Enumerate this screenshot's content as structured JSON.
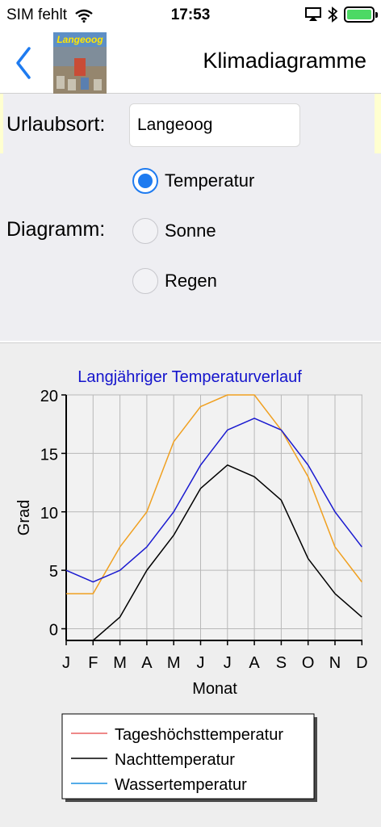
{
  "status_bar": {
    "carrier": "SIM fehlt",
    "time": "17:53"
  },
  "nav": {
    "title": "Klimadiagramme",
    "logo_text": "Langeoog"
  },
  "form": {
    "location_label": "Urlaubsort:",
    "location_value": "Langeoog",
    "diagram_label": "Diagramm:",
    "options": [
      {
        "label": "Temperatur",
        "selected": true
      },
      {
        "label": "Sonne",
        "selected": false
      },
      {
        "label": "Regen",
        "selected": false
      }
    ]
  },
  "colors": {
    "accent": "#1e7bf0",
    "day_max": "#f0a020",
    "night": "#000000",
    "water": "#1a1ad0"
  },
  "chart_data": {
    "type": "line",
    "title": "Langjähriger Temperaturverlauf",
    "xlabel": "Monat",
    "ylabel": "Grad",
    "categories": [
      "J",
      "F",
      "M",
      "A",
      "M",
      "J",
      "J",
      "A",
      "S",
      "O",
      "N",
      "D"
    ],
    "ylim": [
      -1,
      20
    ],
    "yticks": [
      0,
      5,
      10,
      15,
      20
    ],
    "grid": true,
    "legend_position": "bottom",
    "series": [
      {
        "name": "Tageshöchsttemperatur",
        "values": [
          3,
          3,
          7,
          10,
          16,
          19,
          20,
          20,
          17,
          13,
          7,
          4
        ]
      },
      {
        "name": "Nachttemperatur",
        "values": [
          -1,
          -1,
          1,
          5,
          8,
          12,
          14,
          13,
          11,
          6,
          3,
          1
        ]
      },
      {
        "name": "Wassertemperatur",
        "values": [
          5,
          4,
          5,
          7,
          10,
          14,
          17,
          18,
          17,
          14,
          10,
          7
        ]
      }
    ],
    "legend": [
      {
        "label": "Tageshöchsttemperatur",
        "color": "#e86060"
      },
      {
        "label": "Nachttemperatur",
        "color": "#000000"
      },
      {
        "label": "Wassertemperatur",
        "color": "#1a90e0"
      }
    ]
  }
}
